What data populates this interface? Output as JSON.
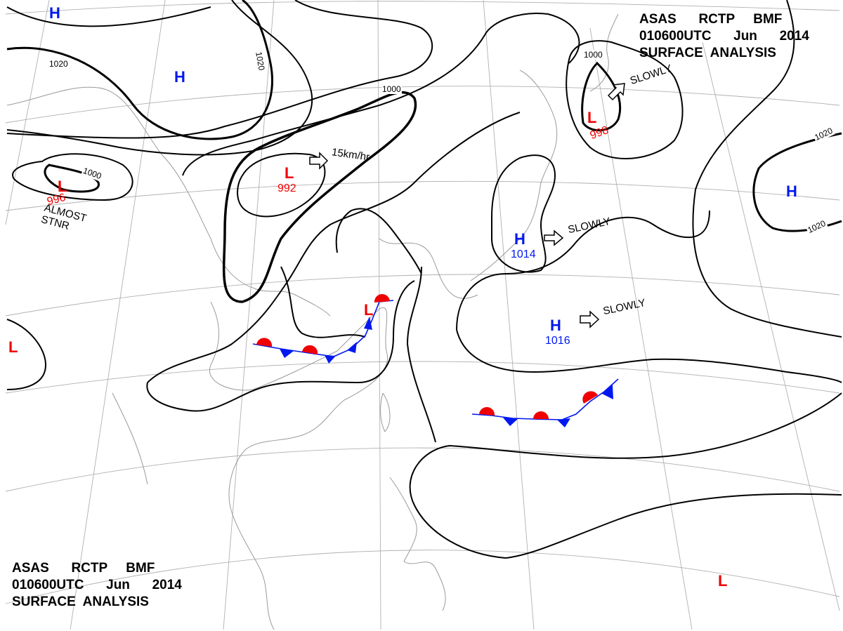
{
  "header_top": {
    "line1": "ASAS      RCTP     BMF",
    "line2": "010600UTC      Jun      2014",
    "line3": "SURFACE  ANALYSIS"
  },
  "header_bottom": {
    "line1": "ASAS      RCTP     BMF",
    "line2": "010600UTC      Jun      2014",
    "line3": "SURFACE  ANALYSIS"
  },
  "colors": {
    "high": "#0018f0",
    "low": "#f00000",
    "isobar": "#000000",
    "coast": "#999999",
    "grid": "#aaaaaa"
  },
  "pressure_centers": [
    {
      "type": "H",
      "symbol": "H",
      "value": ""
    },
    {
      "type": "H",
      "symbol": "H",
      "value": ""
    },
    {
      "type": "H",
      "symbol": "H",
      "value": "1014"
    },
    {
      "type": "H",
      "symbol": "H",
      "value": "1016"
    },
    {
      "type": "H",
      "symbol": "H",
      "value": ""
    },
    {
      "type": "L",
      "symbol": "L",
      "value": "996"
    },
    {
      "type": "L",
      "symbol": "L",
      "value": "992"
    },
    {
      "type": "L",
      "symbol": "L",
      "value": "998"
    },
    {
      "type": "L",
      "symbol": "L",
      "value": ""
    },
    {
      "type": "L",
      "symbol": "L",
      "value": ""
    },
    {
      "type": "L",
      "symbol": "L",
      "value": ""
    }
  ],
  "isobar_labels": [
    "1020",
    "1020",
    "1000",
    "1000",
    "1000",
    "1020",
    "1020"
  ],
  "motions": [
    {
      "text": "15km/hr"
    },
    {
      "text": "SLOWLY"
    },
    {
      "text": "SLOWLY"
    },
    {
      "text": "SLOWLY"
    }
  ],
  "notes": {
    "almost_stnr_1": "ALMOST",
    "almost_stnr_2": "STNR"
  }
}
